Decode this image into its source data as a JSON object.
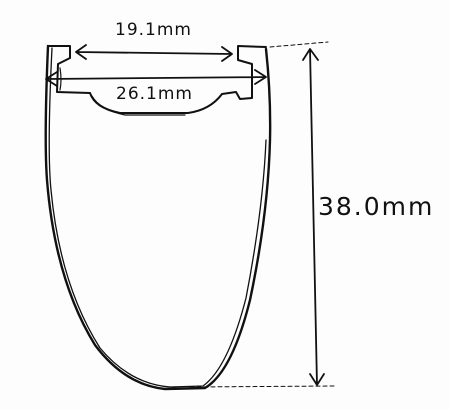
{
  "drawing": {
    "subject": "rim-cross-section-sketch",
    "ink_color": "#111111",
    "paper_color": "#fdfdfd"
  },
  "dimensions": {
    "inner_width": {
      "label": "19.1mm"
    },
    "outer_width": {
      "label": "26.1mm"
    },
    "rim_depth": {
      "label": "38.0mm"
    }
  }
}
